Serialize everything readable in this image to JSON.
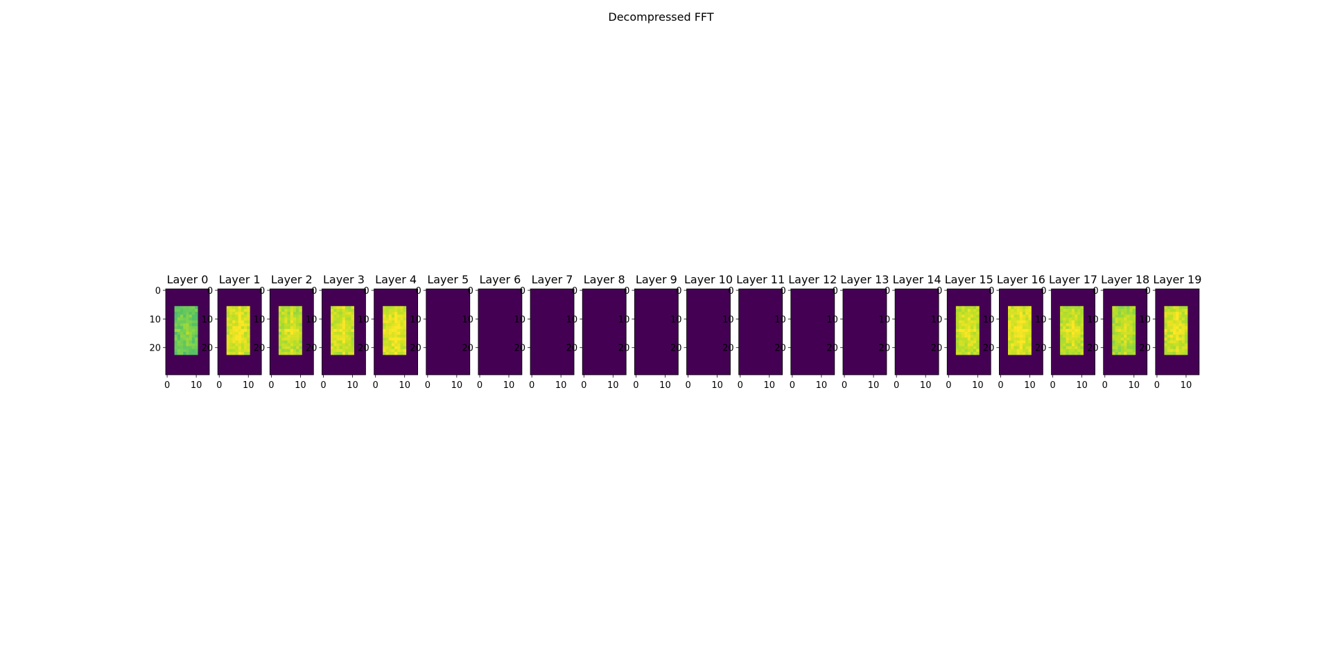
{
  "figure": {
    "title": "Decompressed FFT"
  },
  "colors": {
    "background": "#440154",
    "low": "#22a884",
    "mid": "#7ad151",
    "high": "#bddf26",
    "peak": "#fde725",
    "axis": "#000000"
  },
  "chart_data": {
    "type": "heatmap",
    "colormap": "viridis",
    "image_shape": [
      30,
      15
    ],
    "active_region": {
      "rows": [
        6,
        22
      ],
      "cols": [
        3,
        10
      ]
    },
    "xticks": [
      0,
      10
    ],
    "yticks": [
      0,
      10,
      20
    ],
    "panels": [
      {
        "title": "Layer 0",
        "active": true,
        "level": 0.62
      },
      {
        "title": "Layer 1",
        "active": true,
        "level": 0.86
      },
      {
        "title": "Layer 2",
        "active": true,
        "level": 0.8
      },
      {
        "title": "Layer 3",
        "active": true,
        "level": 0.84
      },
      {
        "title": "Layer 4",
        "active": true,
        "level": 0.88
      },
      {
        "title": "Layer 5",
        "active": false,
        "level": 0
      },
      {
        "title": "Layer 6",
        "active": false,
        "level": 0
      },
      {
        "title": "Layer 7",
        "active": false,
        "level": 0
      },
      {
        "title": "Layer 8",
        "active": false,
        "level": 0
      },
      {
        "title": "Layer 9",
        "active": false,
        "level": 0
      },
      {
        "title": "Layer 10",
        "active": false,
        "level": 0
      },
      {
        "title": "Layer 11",
        "active": false,
        "level": 0
      },
      {
        "title": "Layer 12",
        "active": false,
        "level": 0
      },
      {
        "title": "Layer 13",
        "active": false,
        "level": 0
      },
      {
        "title": "Layer 14",
        "active": false,
        "level": 0
      },
      {
        "title": "Layer 15",
        "active": true,
        "level": 0.84
      },
      {
        "title": "Layer 16",
        "active": true,
        "level": 0.88
      },
      {
        "title": "Layer 17",
        "active": true,
        "level": 0.82
      },
      {
        "title": "Layer 18",
        "active": true,
        "level": 0.78
      },
      {
        "title": "Layer 19",
        "active": true,
        "level": 0.85
      }
    ]
  }
}
